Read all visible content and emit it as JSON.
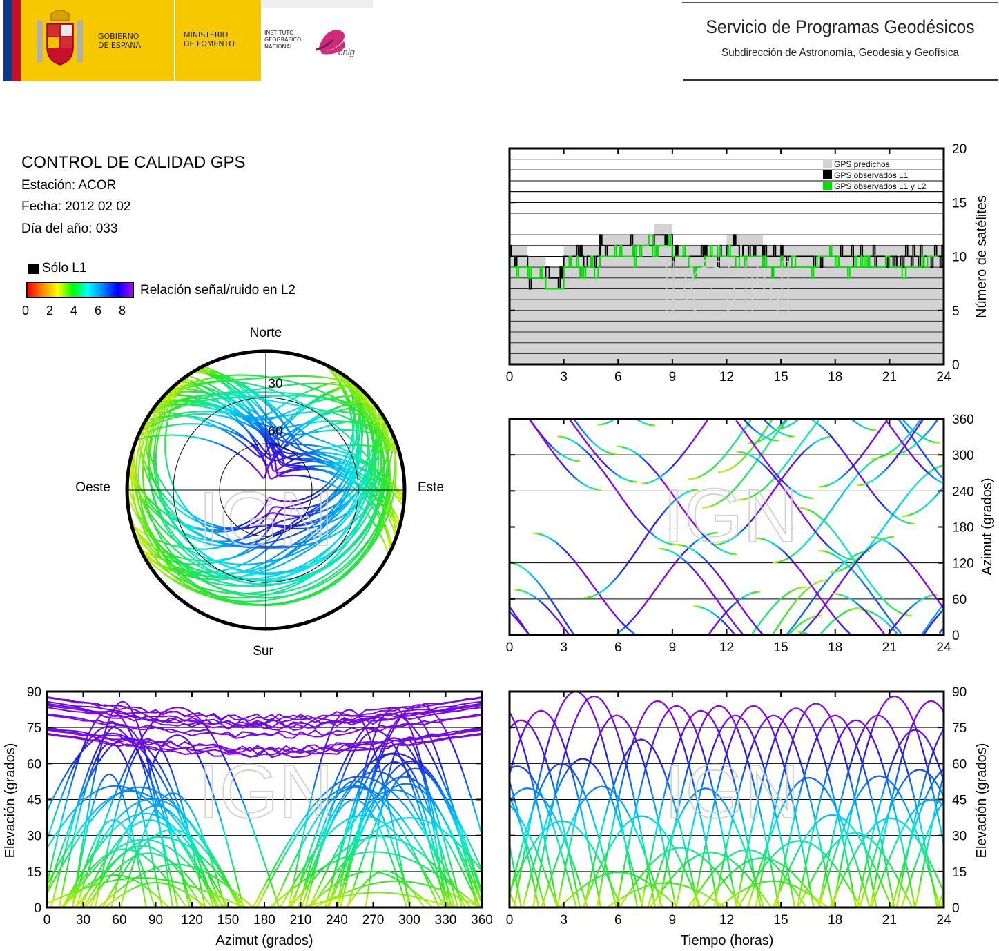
{
  "header": {
    "gov_line1": "GOBIERNO",
    "gov_line2": "DE ESPAÑA",
    "min_line1": "MINISTERIO",
    "min_line2": "DE FOMENTO",
    "ign_line1": "INSTITUTO",
    "ign_line2": "GEOGRÁFICO",
    "ign_line3": "NACIONAL",
    "cnig_logo_text": "cnig",
    "service_title": "Servicio de Programas Geodésicos",
    "service_subtitle": "Subdirección de Astronomía, Geodesia y Geofísica"
  },
  "info": {
    "title": "CONTROL DE CALIDAD GPS",
    "station": "Estación: ACOR",
    "date": "Fecha: 2012 02 02",
    "doy": "Día del año: 033",
    "legend_l1": "Sólo L1",
    "colorbar_label": "Relación señal/ruido en L2",
    "colorbar_ticks": [
      "0",
      "2",
      "4",
      "6",
      "8"
    ]
  },
  "watermark": "IGN",
  "colors": {
    "predicted": "#d3d3d3",
    "observed_l1": "#000000",
    "observed_l1l2": "#00e000"
  },
  "chart_data": [
    {
      "id": "satellite-count",
      "type": "area",
      "ylabel": "Número de satélites",
      "xlim": [
        0,
        24
      ],
      "ylim": [
        0,
        20
      ],
      "xticks": [
        "0",
        "3",
        "6",
        "9",
        "12",
        "15",
        "18",
        "21",
        "24"
      ],
      "yticks": [
        "0",
        "5",
        "10",
        "15",
        "20"
      ],
      "grid": true,
      "legend": "top-right",
      "legend_entries": [
        "GPS predichos",
        "GPS observados L1",
        "GPS observados L1 y L2"
      ],
      "x_hours": [
        0,
        1,
        2,
        3,
        4,
        5,
        6,
        7,
        8,
        9,
        10,
        11,
        12,
        13,
        14,
        15,
        16,
        17,
        18,
        19,
        20,
        21,
        22,
        23,
        24
      ],
      "series": [
        {
          "name": "GPS predichos",
          "values": [
            11,
            10,
            9,
            11,
            11,
            12,
            12,
            12,
            13,
            11,
            11,
            11,
            12,
            12,
            11,
            11,
            11,
            11,
            11,
            11,
            11,
            11,
            11,
            11,
            12
          ]
        },
        {
          "name": "GPS observados L1",
          "values": [
            10,
            8,
            8,
            10,
            10,
            11,
            11,
            11,
            12,
            10,
            10,
            10,
            11,
            11,
            10,
            10,
            10,
            10,
            10,
            10,
            10,
            10,
            10,
            10,
            11
          ]
        },
        {
          "name": "GPS observados L1 y L2",
          "values": [
            9,
            8,
            7,
            9,
            9,
            10,
            10,
            11,
            11,
            10,
            9,
            10,
            10,
            10,
            9,
            9,
            9,
            10,
            9,
            9,
            9,
            9,
            9,
            10,
            10
          ]
        }
      ]
    },
    {
      "id": "azimuth-time",
      "type": "scatter",
      "ylabel": "Azimut (grados)",
      "xlim": [
        0,
        24
      ],
      "ylim": [
        0,
        360
      ],
      "xticks": [
        "0",
        "3",
        "6",
        "9",
        "12",
        "15",
        "18",
        "21",
        "24"
      ],
      "yticks": [
        "0",
        "60",
        "120",
        "180",
        "240",
        "300",
        "360"
      ],
      "grid": true
    },
    {
      "id": "skyplot",
      "type": "scatter",
      "directions": {
        "north": "Norte",
        "south": "Sur",
        "east": "Este",
        "west": "Oeste"
      },
      "elevation_rings": [
        "30",
        "60"
      ]
    },
    {
      "id": "elevation-azimuth",
      "type": "scatter",
      "xlabel": "Azimut (grados)",
      "ylabel": "Elevación (grados)",
      "xlim": [
        0,
        360
      ],
      "ylim": [
        0,
        90
      ],
      "xticks": [
        "0",
        "30",
        "60",
        "90",
        "120",
        "150",
        "180",
        "210",
        "240",
        "270",
        "300",
        "330",
        "360"
      ],
      "yticks": [
        "0",
        "15",
        "30",
        "45",
        "60",
        "75",
        "90"
      ],
      "grid": true
    },
    {
      "id": "elevation-time",
      "type": "scatter",
      "xlabel": "Tiempo (horas)",
      "ylabel": "Elevación (grados)",
      "xlim": [
        0,
        24
      ],
      "ylim": [
        0,
        90
      ],
      "xticks": [
        "0",
        "3",
        "6",
        "9",
        "12",
        "15",
        "18",
        "21",
        "24"
      ],
      "yticks": [
        "0",
        "15",
        "30",
        "45",
        "60",
        "75",
        "90"
      ],
      "grid": true,
      "max_elevations": [
        78,
        82,
        60,
        90,
        88,
        80,
        70,
        86,
        84,
        82,
        84,
        80,
        84,
        80,
        83,
        85,
        80,
        78,
        80,
        88,
        74,
        86
      ]
    }
  ]
}
